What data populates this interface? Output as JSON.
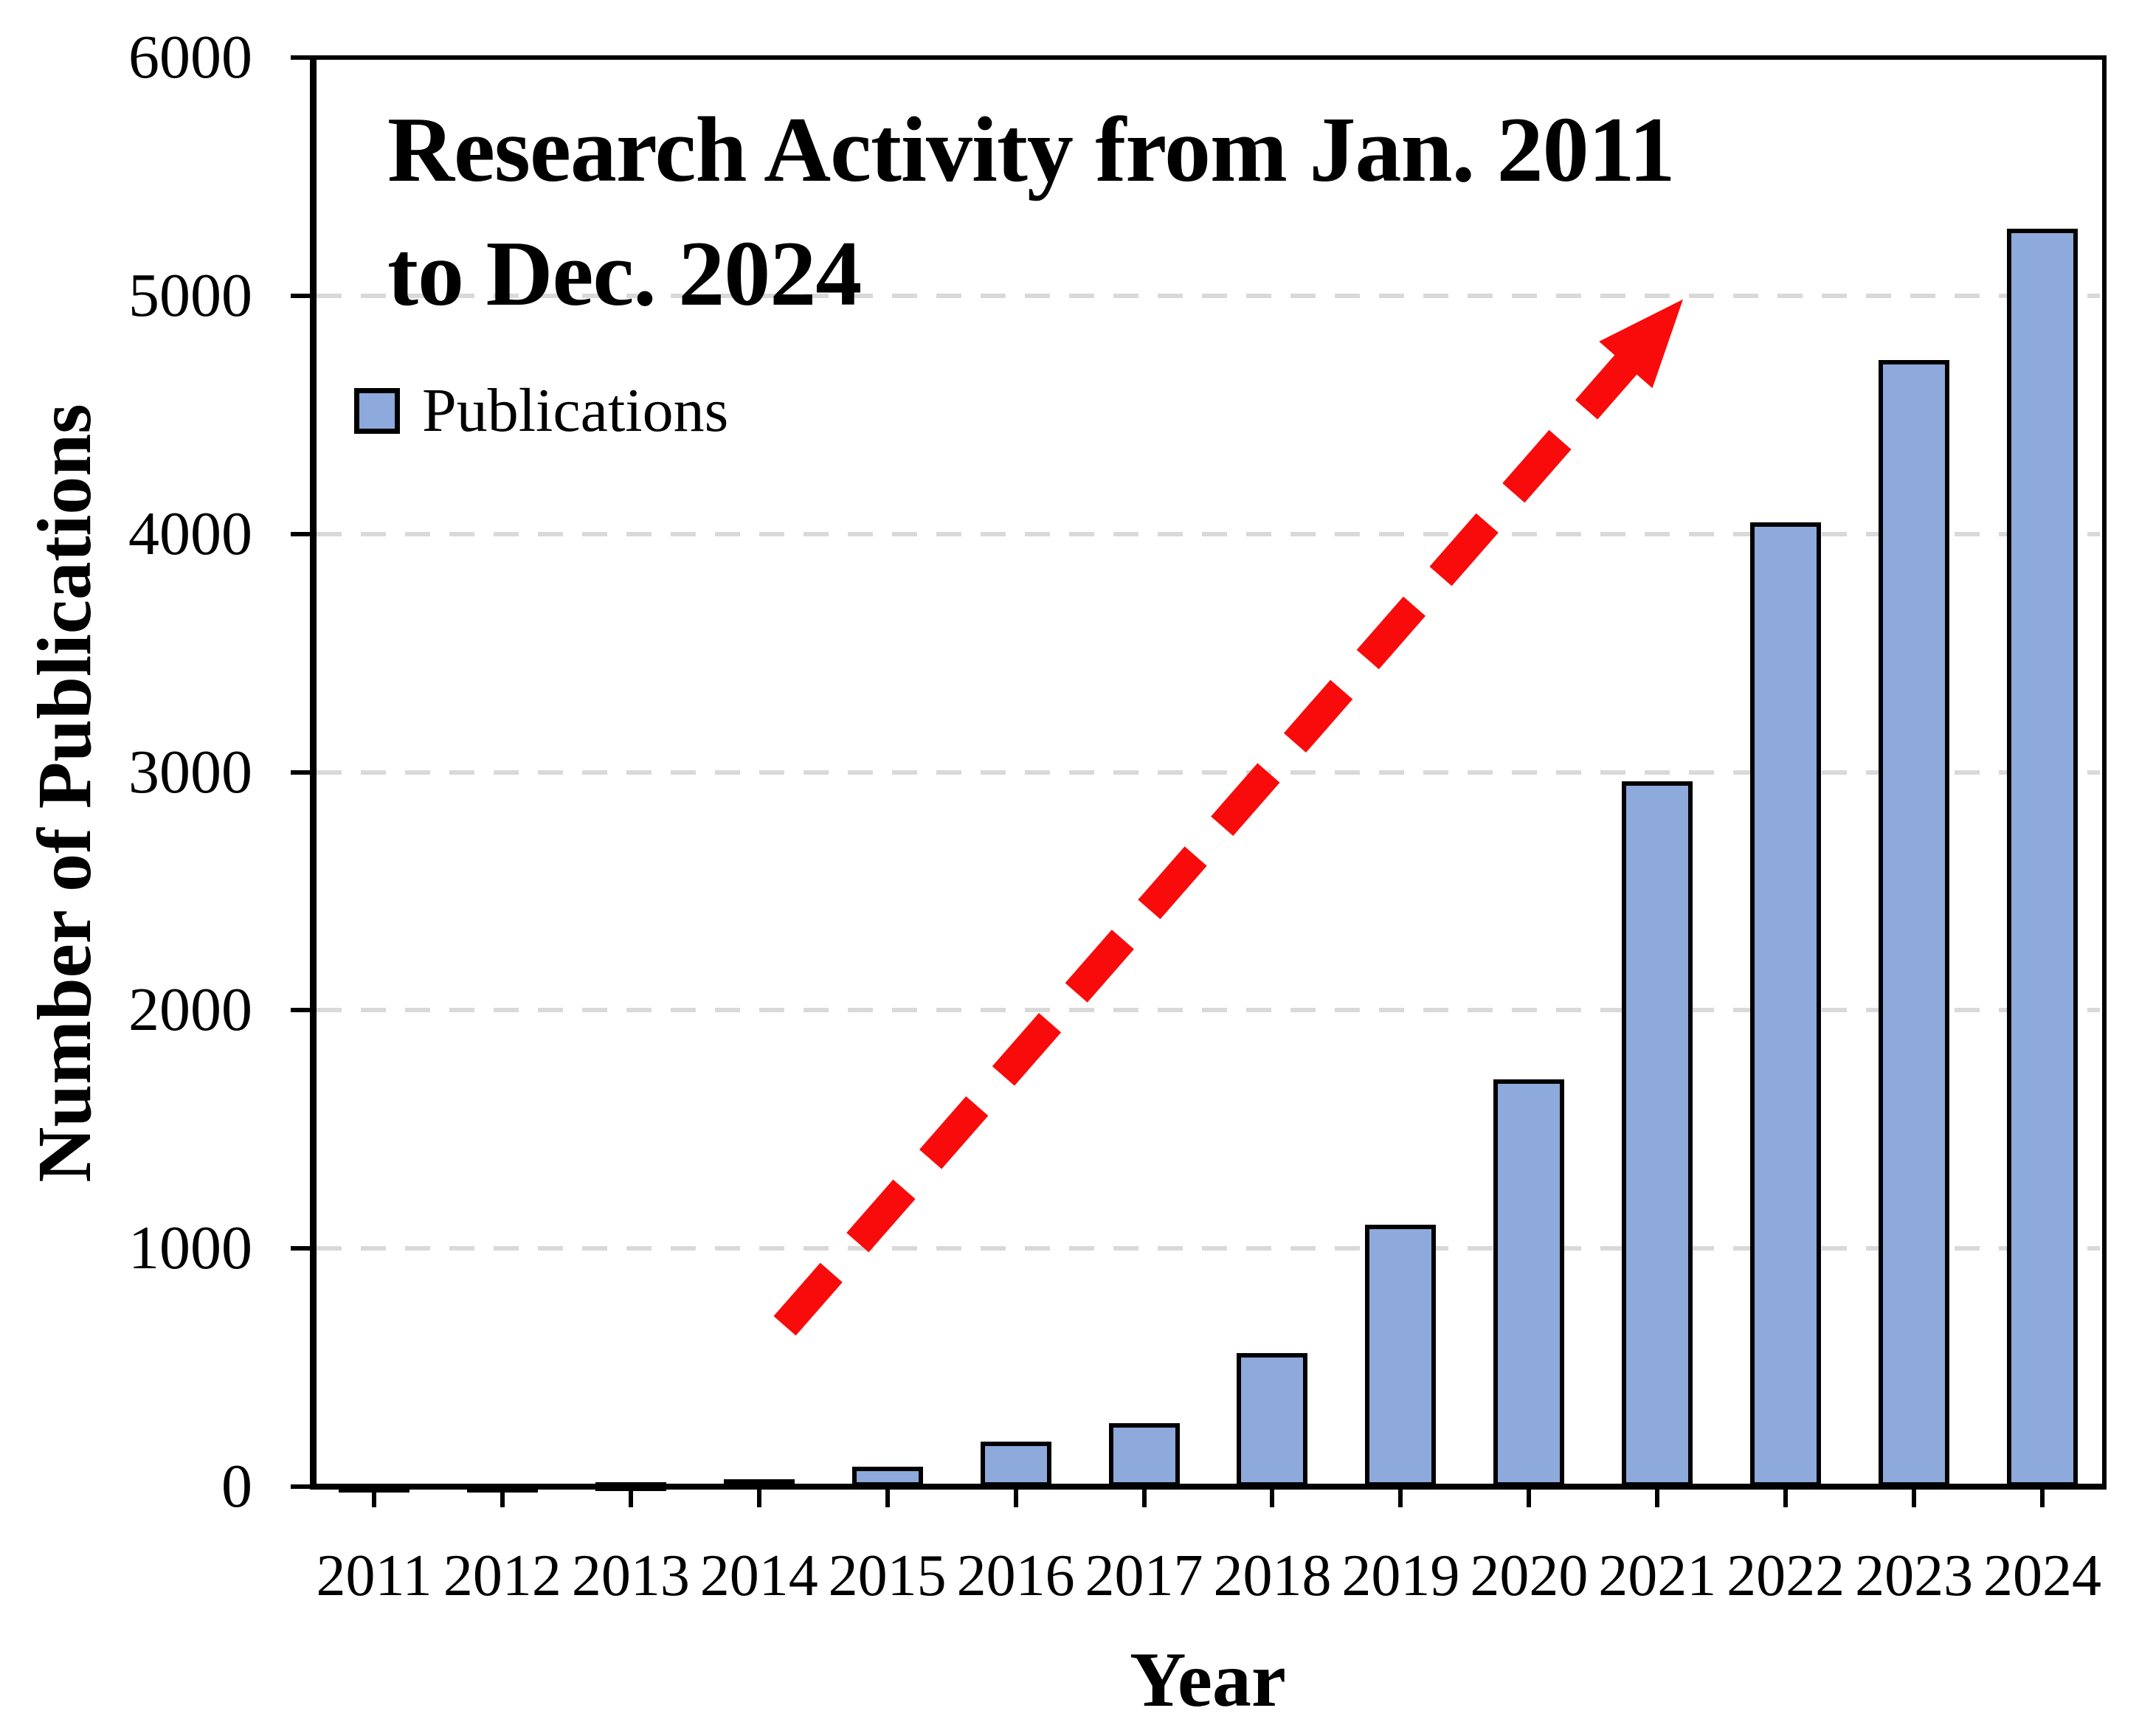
{
  "figure": {
    "title_line1": "Research Activity from Jan. 2011",
    "title_line2": "to Dec. 2024",
    "legend_label": "Publications",
    "x_axis_title": "Year",
    "y_axis_title": "Number of Publications"
  },
  "chart_data": {
    "type": "bar",
    "title": "Research Activity from Jan. 2011 to Dec. 2024",
    "xlabel": "Year",
    "ylabel": "Number of Publications",
    "categories": [
      "2011",
      "2012",
      "2013",
      "2014",
      "2015",
      "2016",
      "2017",
      "2018",
      "2019",
      "2020",
      "2021",
      "2022",
      "2023",
      "2024"
    ],
    "values": [
      10,
      12,
      20,
      30,
      85,
      190,
      265,
      560,
      1100,
      1710,
      2960,
      4050,
      4730,
      5280
    ],
    "ylim": [
      0,
      6000
    ],
    "yticks": [
      0,
      1000,
      2000,
      3000,
      4000,
      5000,
      6000
    ],
    "grid": "horizontal dashed gridlines at 1000-5000",
    "legend": [
      "Publications"
    ],
    "legend_position": "upper-left-inside",
    "annotations": [
      {
        "type": "arrow",
        "style": "dashed",
        "meaning": "upward publication trend",
        "color": "#F90B0B",
        "from": {
          "year": 2014.2,
          "value": 675
        },
        "to": {
          "year": 2021.2,
          "value": 4985
        }
      }
    ]
  },
  "colors": {
    "background": "#FFFFFF",
    "bar_fill": "#8EA9DB",
    "bar_border": "#000000",
    "gridline": "#D9D9D9",
    "axis": "#000000",
    "arrow": "#F90B0B"
  }
}
